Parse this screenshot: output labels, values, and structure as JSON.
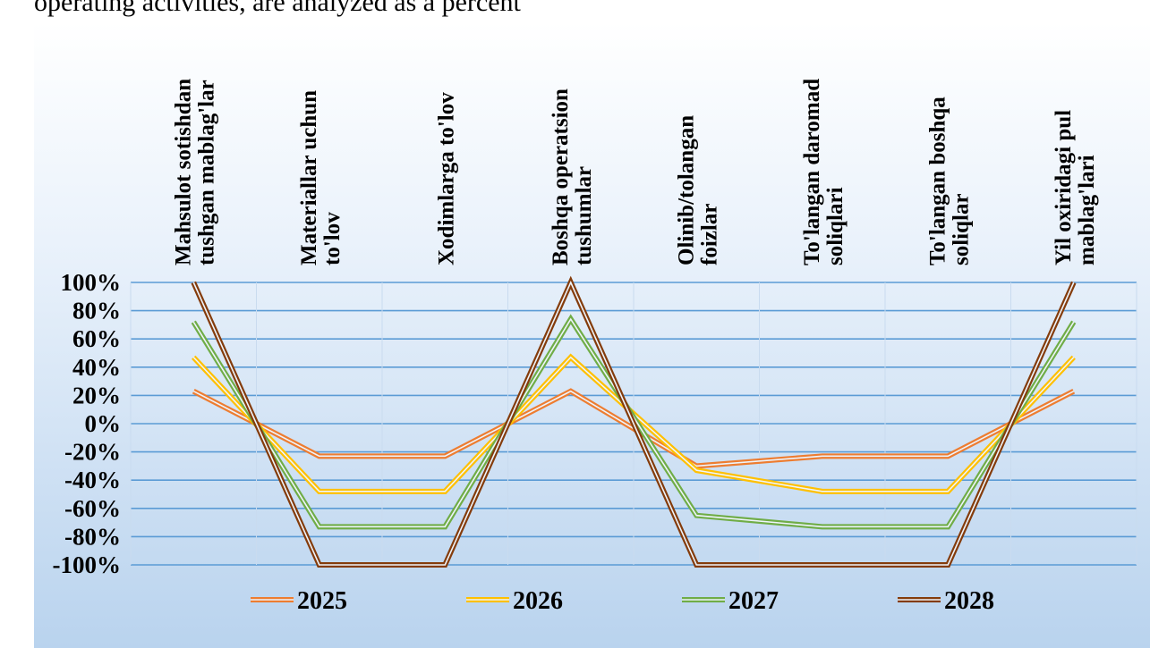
{
  "header": {
    "text": "operating activities, are analyzed as a percent"
  },
  "chart_data": {
    "type": "line",
    "title": "",
    "xlabel": "",
    "ylabel": "",
    "ylim": [
      -1,
      1
    ],
    "y_ticks": [
      {
        "value": 1,
        "label": "100%"
      },
      {
        "value": 0.8,
        "label": "80%"
      },
      {
        "value": 0.6,
        "label": "60%"
      },
      {
        "value": 0.4,
        "label": "40%"
      },
      {
        "value": 0.2,
        "label": "20%"
      },
      {
        "value": 0,
        "label": "0%"
      },
      {
        "value": -0.2,
        "label": "-20%"
      },
      {
        "value": -0.4,
        "label": "-40%"
      },
      {
        "value": -0.6,
        "label": "-60%"
      },
      {
        "value": -0.8,
        "label": "-80%"
      },
      {
        "value": -1,
        "label": "-100%"
      }
    ],
    "categories": [
      [
        "Mahsulot sotishdan",
        "tushgan mablag'lar"
      ],
      [
        "Materiallar uchun",
        "to'lov"
      ],
      [
        "Xodimlarga to'lov"
      ],
      [
        "Boshqa operatsion",
        "tushumlar"
      ],
      [
        "Olinib/tolangan",
        "foizlar"
      ],
      [
        "To'langan daromad",
        "soliqlari"
      ],
      [
        "To'langan boshqa",
        "soliqlar"
      ],
      [
        "Yil oxiridagi pul",
        "mablag'lari"
      ]
    ],
    "series": [
      {
        "name": "2025",
        "color": "#ed7d31",
        "values": [
          0.23,
          -0.23,
          -0.23,
          0.23,
          -0.3,
          -0.23,
          -0.23,
          0.23
        ]
      },
      {
        "name": "2026",
        "color": "#ffc000",
        "values": [
          0.47,
          -0.48,
          -0.48,
          0.47,
          -0.33,
          -0.48,
          -0.48,
          0.47
        ]
      },
      {
        "name": "2027",
        "color": "#70ad47",
        "values": [
          0.72,
          -0.73,
          -0.73,
          0.74,
          -0.65,
          -0.73,
          -0.73,
          0.72
        ]
      },
      {
        "name": "2028",
        "color": "#843c0c",
        "values": [
          1.0,
          -1.0,
          -1.0,
          1.0,
          -1.0,
          -1.0,
          -1.0,
          1.0
        ]
      }
    ],
    "legend": "bottom",
    "grid": true
  }
}
